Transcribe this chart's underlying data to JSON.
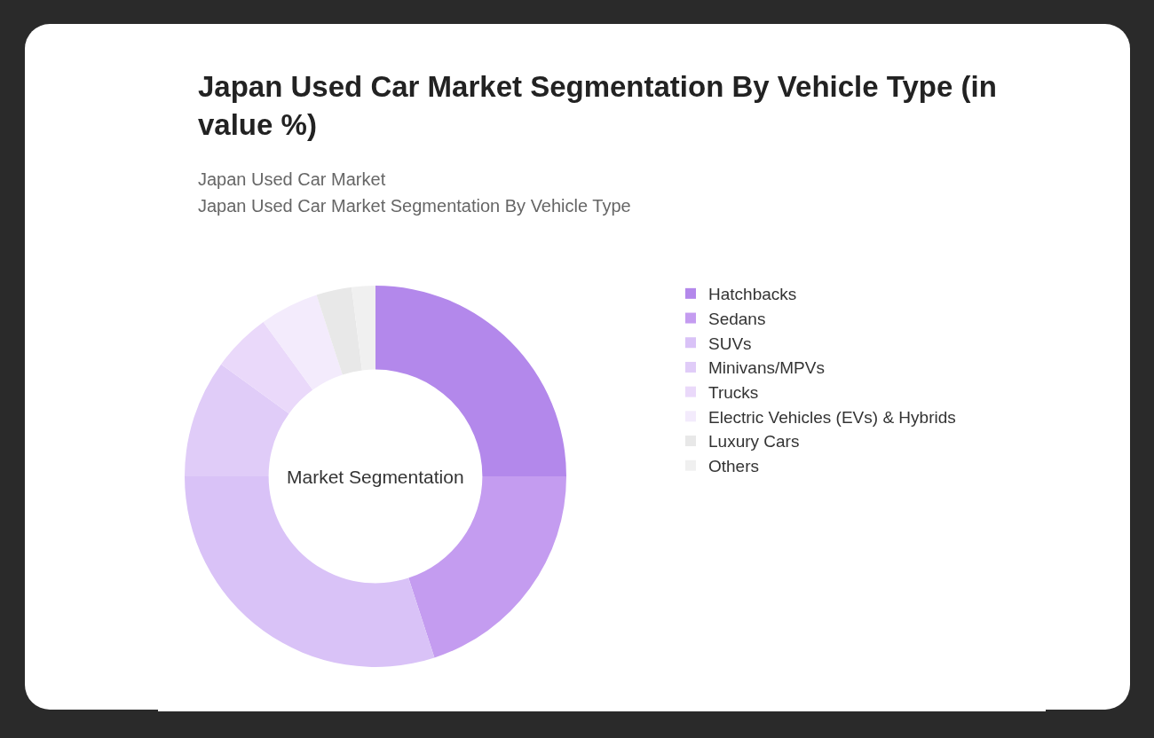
{
  "chart_data": {
    "type": "donut",
    "title": "Japan Used Car Market Segmentation By Vehicle Type (in value %)",
    "subtitle": "Japan Used Car Market\nJapan Used Car Market Segmentation By Vehicle Type",
    "annotations": [
      "Market Segmentation"
    ],
    "categories": [
      "Hatchbacks",
      "Sedans",
      "SUVs",
      "Minivans/MPVs",
      "Trucks",
      "Electric Vehicles (EVs) & Hybrids",
      "Luxury Cars",
      "Others"
    ],
    "values": [
      25,
      20,
      30,
      10,
      5,
      5,
      3,
      2
    ],
    "colors": [
      "#b388eb",
      "#c49cf0",
      "#d9c2f7",
      "#e0ccf8",
      "#ead9fa",
      "#f3ebfc",
      "#e8e8e8",
      "#f0f0f0"
    ],
    "legend": "right"
  }
}
